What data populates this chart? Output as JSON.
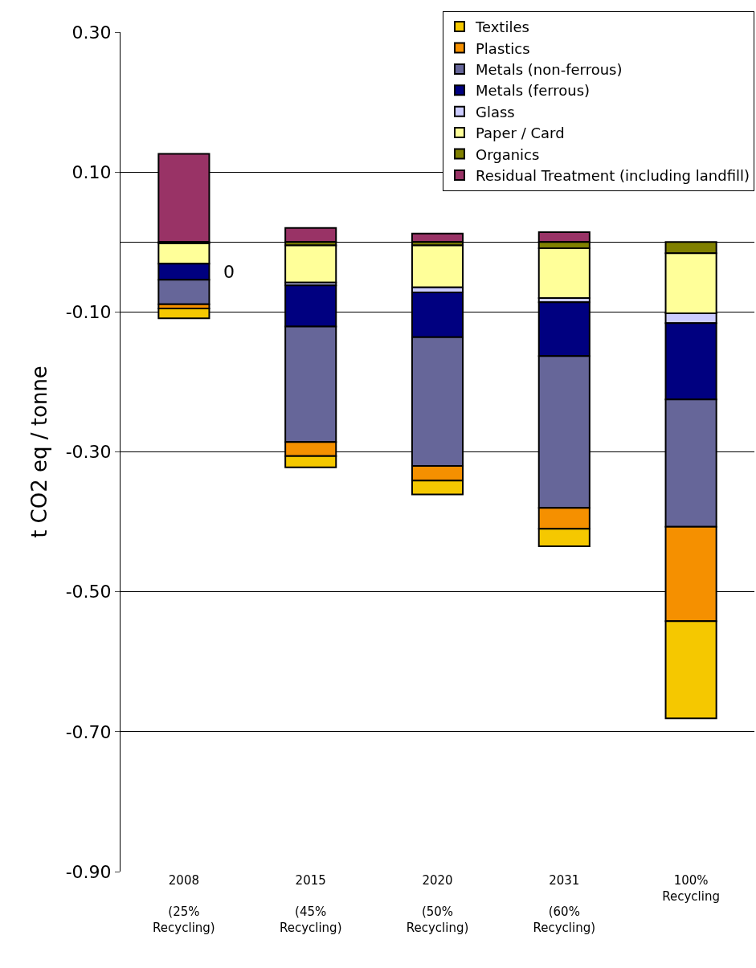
{
  "chart_data": {
    "type": "bar",
    "stacked": true,
    "ylabel": "t CO2 eq / tonne",
    "categories": [
      "2008\n\n(25%\nRecycling)",
      "2015\n\n(45%\nRecycling)",
      "2020\n\n(50%\nRecycling)",
      "2031\n\n(60%\nRecycling)",
      "100%\nRecycling"
    ],
    "series": [
      {
        "name": "Residual Treatment (including landfill)",
        "color": "#993366",
        "values": [
          0.126,
          0.02,
          0.012,
          0.014,
          null
        ]
      },
      {
        "name": "Organics",
        "color": "#808000",
        "values": [
          -0.002,
          -0.005,
          -0.005,
          -0.009,
          -0.016
        ]
      },
      {
        "name": "Paper / Card",
        "color": "#ffff99",
        "values": [
          -0.029,
          -0.053,
          -0.06,
          -0.071,
          -0.086
        ]
      },
      {
        "name": "Glass",
        "color": "#ccccff",
        "values": [
          null,
          -0.004,
          -0.007,
          -0.006,
          -0.014
        ]
      },
      {
        "name": "Metals (ferrous)",
        "color": "#000080",
        "values": [
          -0.023,
          -0.059,
          -0.064,
          -0.077,
          -0.109
        ]
      },
      {
        "name": "Metals (non-ferrous)",
        "color": "#666699",
        "values": [
          -0.035,
          -0.165,
          -0.184,
          -0.217,
          -0.182
        ]
      },
      {
        "name": "Plastics",
        "color": "#f59000",
        "values": [
          -0.006,
          -0.02,
          -0.021,
          -0.03,
          -0.135
        ]
      },
      {
        "name": "Textiles",
        "color": "#f5c800",
        "values": [
          -0.014,
          -0.016,
          -0.02,
          -0.025,
          -0.139
        ]
      }
    ],
    "ylim": [
      -0.9,
      0.3
    ],
    "yticks": [
      {
        "value": 0.3,
        "label": "0.30"
      },
      {
        "value": 0.1,
        "label": "0.10"
      },
      {
        "value": -0.1,
        "label": "-0.10"
      },
      {
        "value": -0.3,
        "label": "-0.30"
      },
      {
        "value": -0.5,
        "label": "-0.50"
      },
      {
        "value": -0.7,
        "label": "-0.70"
      },
      {
        "value": -0.9,
        "label": "-0.90"
      }
    ],
    "grid": "y",
    "legend": "top right",
    "annotations": [
      "0"
    ]
  }
}
